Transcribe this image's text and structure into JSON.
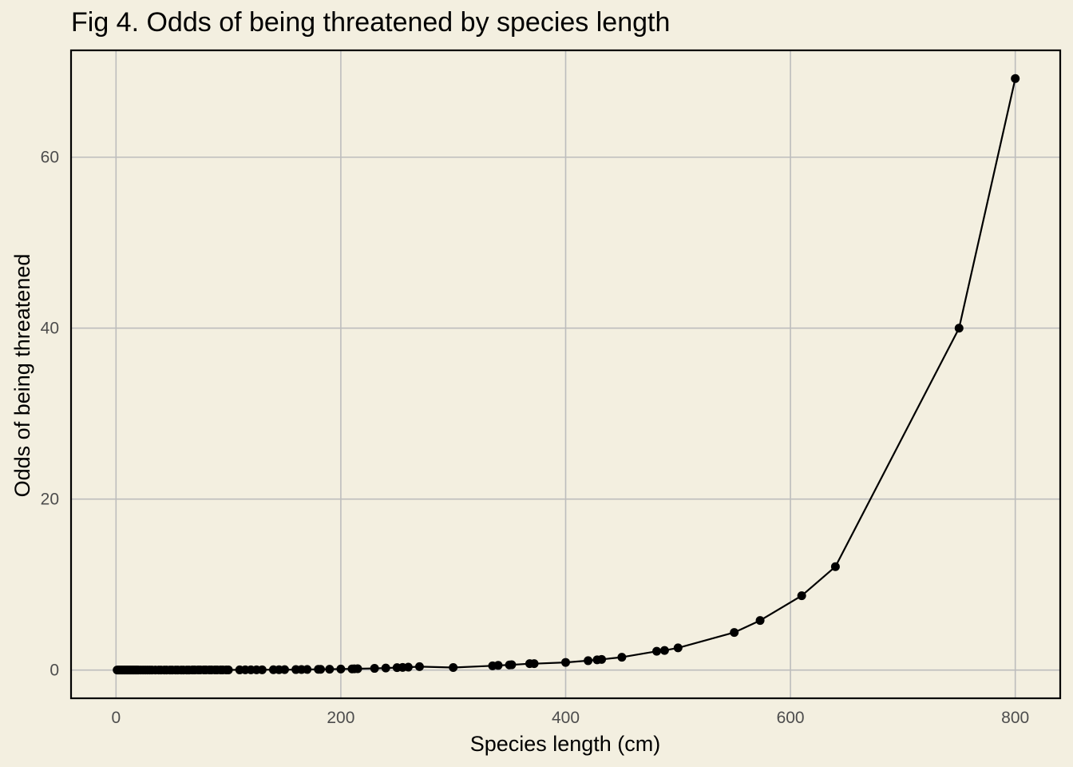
{
  "chart_data": {
    "type": "line",
    "title": "Fig 4. Odds of being threatened by species length",
    "xlabel": "Species length (cm)",
    "ylabel": "Odds of being threatened",
    "xlim": [
      -40,
      840
    ],
    "ylim": [
      -3.3,
      72.5
    ],
    "xticks": [
      0,
      200,
      400,
      600,
      800
    ],
    "yticks": [
      0,
      20,
      40,
      60
    ],
    "xtick_labels": [
      "0",
      "200",
      "400",
      "600",
      "800"
    ],
    "ytick_labels": [
      "0",
      "20",
      "40",
      "60"
    ],
    "grid": true,
    "markers": true,
    "colors": {
      "background": "#f3efe0",
      "grid": "#bdbdbd",
      "line": "#000000",
      "frame": "#000000"
    },
    "series": [
      {
        "x": [
          1,
          2,
          3,
          4,
          5,
          6,
          7,
          8,
          9,
          10,
          11,
          12,
          13,
          14,
          15,
          16,
          17,
          18,
          19,
          20,
          22,
          24,
          26,
          28,
          30,
          32,
          35,
          38,
          40,
          43,
          45,
          48,
          50,
          53,
          55,
          58,
          60,
          63,
          65,
          68,
          70,
          73,
          75,
          78,
          80,
          83,
          85,
          88,
          90,
          93,
          95,
          98,
          100,
          110,
          115,
          120,
          125,
          130,
          140,
          145,
          150,
          160,
          165,
          170,
          180,
          182,
          190,
          200,
          210,
          212,
          215,
          230,
          240,
          250,
          255,
          260,
          270,
          300,
          335,
          340,
          350,
          352,
          368,
          372,
          400,
          420,
          428,
          432,
          450,
          481,
          488,
          500,
          550,
          573,
          610,
          640,
          750,
          800
        ],
        "y": [
          0.005,
          0.005,
          0.005,
          0.005,
          0.005,
          0.006,
          0.006,
          0.006,
          0.006,
          0.006,
          0.006,
          0.006,
          0.006,
          0.006,
          0.006,
          0.006,
          0.006,
          0.006,
          0.006,
          0.007,
          0.007,
          0.007,
          0.007,
          0.007,
          0.007,
          0.008,
          0.008,
          0.008,
          0.008,
          0.009,
          0.009,
          0.009,
          0.01,
          0.01,
          0.01,
          0.011,
          0.011,
          0.012,
          0.012,
          0.013,
          0.013,
          0.014,
          0.014,
          0.015,
          0.015,
          0.016,
          0.017,
          0.017,
          0.018,
          0.019,
          0.019,
          0.02,
          0.021,
          0.025,
          0.027,
          0.029,
          0.032,
          0.035,
          0.042,
          0.046,
          0.05,
          0.06,
          0.065,
          0.071,
          0.085,
          0.088,
          0.1,
          0.12,
          0.14,
          0.15,
          0.16,
          0.2,
          0.24,
          0.29,
          0.31,
          0.34,
          0.4,
          0.3,
          0.5,
          0.55,
          0.6,
          0.62,
          0.75,
          0.75,
          0.9,
          1.1,
          1.2,
          1.25,
          1.5,
          2.2,
          2.3,
          2.6,
          4.4,
          5.8,
          8.7,
          12.1,
          40.0,
          69.2
        ]
      }
    ]
  }
}
